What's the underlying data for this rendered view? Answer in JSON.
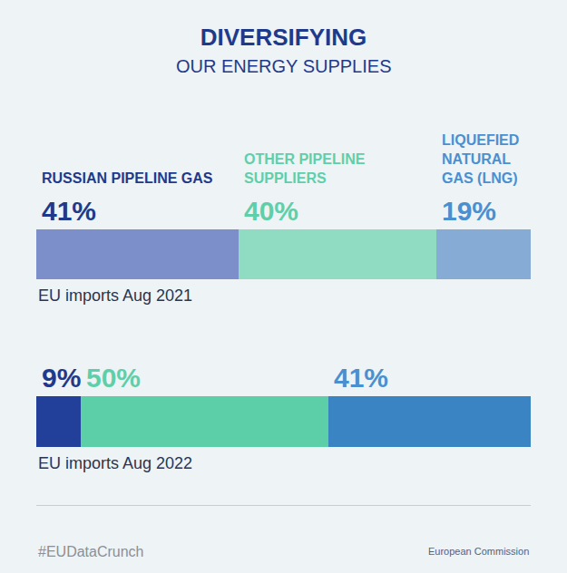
{
  "chart_data": {
    "type": "bar",
    "title": "DIVERSIFYING",
    "subtitle": "OUR ENERGY SUPPLIES",
    "orientation": "horizontal",
    "stacked": true,
    "data_labels": true,
    "tick_labels": false,
    "grid": false,
    "categories": [
      "EU imports Aug 2021",
      "EU imports Aug 2022"
    ],
    "xlim": [
      0,
      100
    ],
    "series": [
      {
        "name": "RUSSIAN PIPELINE GAS",
        "color": "#1f3a8a",
        "colors": [
          "#7d8fcb",
          "#22409a"
        ],
        "values": [
          41,
          9
        ],
        "value_labels": [
          "41%",
          "9%"
        ]
      },
      {
        "name": "OTHER PIPELINE SUPPLIERS",
        "color": "#5fcfa9",
        "colors": [
          "#8fdcc2",
          "#5ccfa8"
        ],
        "values": [
          40,
          50
        ],
        "value_labels": [
          "40%",
          "50%"
        ]
      },
      {
        "name": "LIQUEFIED NATURAL GAS (LNG)",
        "color": "#4a90d0",
        "colors": [
          "#86acd6",
          "#3b84c4"
        ],
        "values": [
          19,
          41
        ],
        "value_labels": [
          "19%",
          "41%"
        ]
      }
    ],
    "annotations": [
      "#EUDataCrunch",
      "European Commission"
    ]
  }
}
